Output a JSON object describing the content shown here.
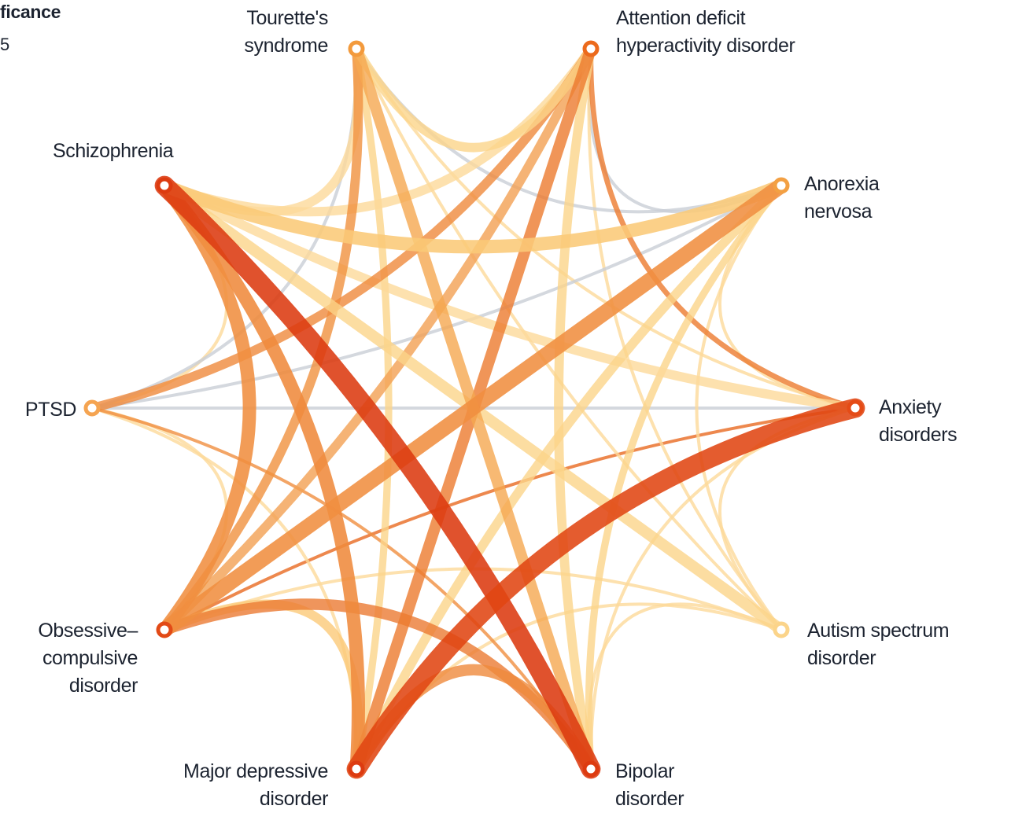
{
  "legend": {
    "title": "ficance",
    "subtitle": "5"
  },
  "nodes": [
    {
      "id": "tourette",
      "lines": [
        "Tourette's",
        "syndrome"
      ],
      "color": "#f39a3c"
    },
    {
      "id": "adhd",
      "lines": [
        "Attention deficit",
        "hyperactivity disorder"
      ],
      "color": "#ec6a1c"
    },
    {
      "id": "anorexia",
      "lines": [
        "Anorexia",
        "nervosa"
      ],
      "color": "#f3a043"
    },
    {
      "id": "anxiety",
      "lines": [
        "Anxiety",
        "disorders"
      ],
      "color": "#e54b16"
    },
    {
      "id": "autism",
      "lines": [
        "Autism spectrum",
        "disorder"
      ],
      "color": "#fbd48a"
    },
    {
      "id": "bipolar",
      "lines": [
        "Bipolar",
        "disorder"
      ],
      "color": "#dd3b10"
    },
    {
      "id": "mdd",
      "lines": [
        "Major depressive",
        "disorder"
      ],
      "color": "#dd3b10"
    },
    {
      "id": "ocd",
      "lines": [
        "Obsessive–",
        "compulsive",
        "disorder"
      ],
      "color": "#e24a16"
    },
    {
      "id": "ptsd",
      "lines": [
        "PTSD"
      ],
      "color": "#f5a451"
    },
    {
      "id": "schizophrenia",
      "lines": [
        "Schizophrenia"
      ],
      "color": "#dd3b10"
    }
  ],
  "links": [
    {
      "a": "schizophrenia",
      "b": "bipolar",
      "weight": 9,
      "color": "#dc3a10"
    },
    {
      "a": "mdd",
      "b": "anxiety",
      "weight": 9,
      "color": "#e04512"
    },
    {
      "a": "schizophrenia",
      "b": "mdd",
      "weight": 6,
      "color": "#ef8a3c"
    },
    {
      "a": "schizophrenia",
      "b": "ocd",
      "weight": 6,
      "color": "#f08e40"
    },
    {
      "a": "schizophrenia",
      "b": "anorexia",
      "weight": 6,
      "color": "#fbc978"
    },
    {
      "a": "schizophrenia",
      "b": "autism",
      "weight": 5,
      "color": "#fbd48a"
    },
    {
      "a": "schizophrenia",
      "b": "tourette",
      "weight": 4,
      "color": "#fcd99a"
    },
    {
      "a": "schizophrenia",
      "b": "adhd",
      "weight": 4,
      "color": "#fcd99a"
    },
    {
      "a": "schizophrenia",
      "b": "anxiety",
      "weight": 4,
      "color": "#fcd99a"
    },
    {
      "a": "schizophrenia",
      "b": "ptsd",
      "weight": 1,
      "color": "#fcd99a"
    },
    {
      "a": "ocd",
      "b": "anorexia",
      "weight": 7,
      "color": "#f08e40"
    },
    {
      "a": "ocd",
      "b": "adhd",
      "weight": 4,
      "color": "#f3a053"
    },
    {
      "a": "ocd",
      "b": "tourette",
      "weight": 4,
      "color": "#f0913f"
    },
    {
      "a": "ocd",
      "b": "bipolar",
      "weight": 5,
      "color": "#eb7a33"
    },
    {
      "a": "ocd",
      "b": "mdd",
      "weight": 4,
      "color": "#fbc978"
    },
    {
      "a": "ocd",
      "b": "anxiety",
      "weight": 1,
      "color": "#e96a22"
    },
    {
      "a": "ocd",
      "b": "autism",
      "weight": 1,
      "color": "#fcd99a"
    },
    {
      "a": "ocd",
      "b": "ptsd",
      "weight": 1,
      "color": "#fcd99a"
    },
    {
      "a": "adhd",
      "b": "mdd",
      "weight": 5,
      "color": "#ec7a2e"
    },
    {
      "a": "adhd",
      "b": "ptsd",
      "weight": 4,
      "color": "#ef8a3c"
    },
    {
      "a": "adhd",
      "b": "bipolar",
      "weight": 4,
      "color": "#fbd48a"
    },
    {
      "a": "adhd",
      "b": "anxiety",
      "weight": 2,
      "color": "#ec7a2e"
    },
    {
      "a": "adhd",
      "b": "anorexia",
      "weight": 1,
      "color": "#c9ced6"
    },
    {
      "a": "adhd",
      "b": "autism",
      "weight": 1,
      "color": "#fcd99a"
    },
    {
      "a": "tourette",
      "b": "adhd",
      "weight": 4,
      "color": "#fbd48a"
    },
    {
      "a": "tourette",
      "b": "mdd",
      "weight": 3,
      "color": "#fbd48a"
    },
    {
      "a": "tourette",
      "b": "bipolar",
      "weight": 5,
      "color": "#f5a850"
    },
    {
      "a": "tourette",
      "b": "anorexia",
      "weight": 1,
      "color": "#c9ced6"
    },
    {
      "a": "tourette",
      "b": "ptsd",
      "weight": 1,
      "color": "#c9ced6"
    },
    {
      "a": "tourette",
      "b": "anxiety",
      "weight": 1,
      "color": "#fcd99a"
    },
    {
      "a": "tourette",
      "b": "autism",
      "weight": 1,
      "color": "#fcd99a"
    },
    {
      "a": "mdd",
      "b": "anorexia",
      "weight": 4,
      "color": "#fbd48a"
    },
    {
      "a": "mdd",
      "b": "bipolar",
      "weight": 5,
      "color": "#ef8a3c"
    },
    {
      "a": "mdd",
      "b": "ptsd",
      "weight": 1,
      "color": "#fcd99a"
    },
    {
      "a": "mdd",
      "b": "autism",
      "weight": 1,
      "color": "#fcd99a"
    },
    {
      "a": "ptsd",
      "b": "anorexia",
      "weight": 1,
      "color": "#c9ced6"
    },
    {
      "a": "ptsd",
      "b": "anxiety",
      "weight": 1,
      "color": "#c9ced6"
    },
    {
      "a": "ptsd",
      "b": "bipolar",
      "weight": 1,
      "color": "#f08e40"
    },
    {
      "a": "anorexia",
      "b": "bipolar",
      "weight": 3,
      "color": "#fbd48a"
    },
    {
      "a": "anorexia",
      "b": "anxiety",
      "weight": 1,
      "color": "#fcd99a"
    },
    {
      "a": "anxiety",
      "b": "bipolar",
      "weight": 1,
      "color": "#fcd99a"
    },
    {
      "a": "autism",
      "b": "bipolar",
      "weight": 1,
      "color": "#fcd99a"
    },
    {
      "a": "autism",
      "b": "anorexia",
      "weight": 1,
      "color": "#fcd99a"
    },
    {
      "a": "autism",
      "b": "anxiety",
      "weight": 1,
      "color": "#fcd99a"
    }
  ]
}
